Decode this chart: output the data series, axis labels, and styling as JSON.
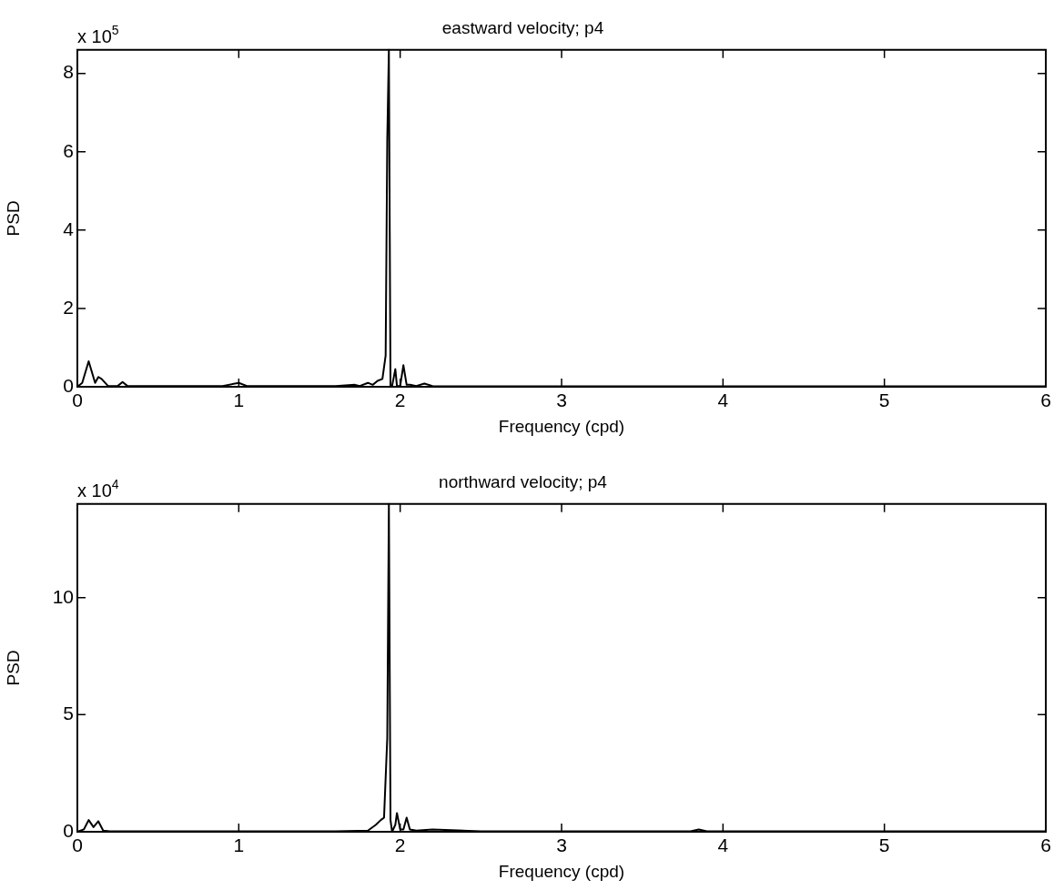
{
  "chart_data": [
    {
      "type": "line",
      "title": "eastward velocity; p4",
      "xlabel": "Frequency (cpd)",
      "ylabel": "PSD",
      "annotations": [
        "x 10$^{5}$"
      ],
      "series": [
        {
          "color": "#000000",
          "x": [
            0,
            0.03,
            0.07,
            0.11,
            0.13,
            0.15,
            0.19,
            0.25,
            0.28,
            0.31,
            0.4,
            0.6,
            0.9,
            1.0,
            1.05,
            1.3,
            1.6,
            1.72,
            1.75,
            1.8,
            1.83,
            1.86,
            1.89,
            1.91,
            1.92,
            1.93,
            1.94,
            1.95,
            1.97,
            1.98,
            2.0,
            2.02,
            2.04,
            2.06,
            2.1,
            2.15,
            2.2,
            2.5,
            3.0,
            3.5,
            4.0,
            5.0,
            6.0
          ],
          "values": [
            0,
            0.1,
            0.65,
            0.1,
            0.25,
            0.2,
            0.02,
            0.02,
            0.12,
            0.02,
            0.02,
            0.02,
            0.02,
            0.1,
            0.02,
            0.02,
            0.02,
            0.05,
            0.02,
            0.1,
            0.05,
            0.15,
            0.2,
            0.8,
            6.3,
            8.6,
            0,
            0.02,
            0.45,
            0.02,
            0.02,
            0.55,
            0.05,
            0.05,
            0.02,
            0.08,
            0.02,
            0.01,
            0.01,
            0.01,
            0.01,
            0.01,
            0.01
          ]
        }
      ],
      "xlim": [
        0,
        6
      ],
      "xticks": [
        0,
        1,
        2,
        3,
        4,
        5,
        6
      ],
      "ylim": [
        0,
        8.6
      ],
      "yticks": [
        0,
        2,
        4,
        6,
        8
      ],
      "grid": false,
      "legend": false,
      "marker": "none",
      "line_style": "solid"
    },
    {
      "type": "line",
      "title": "northward velocity; p4",
      "xlabel": "Frequency (cpd)",
      "ylabel": "PSD",
      "annotations": [
        "x 10$^{4}$"
      ],
      "series": [
        {
          "color": "#000000",
          "x": [
            0,
            0.04,
            0.07,
            0.1,
            0.13,
            0.16,
            0.2,
            0.4,
            0.8,
            1.2,
            1.6,
            1.8,
            1.85,
            1.88,
            1.9,
            1.92,
            1.93,
            1.94,
            1.95,
            1.97,
            1.98,
            2.0,
            2.02,
            2.04,
            2.06,
            2.1,
            2.2,
            2.5,
            3.0,
            3.5,
            3.8,
            3.85,
            3.9,
            4.5,
            5.0,
            6.0
          ],
          "values": [
            0,
            0.1,
            0.5,
            0.2,
            0.45,
            0.05,
            0.02,
            0.02,
            0.02,
            0.02,
            0.02,
            0.05,
            0.3,
            0.5,
            0.6,
            4.0,
            14,
            0.5,
            0,
            0.3,
            0.8,
            0.1,
            0.1,
            0.6,
            0.1,
            0.05,
            0.1,
            0.02,
            0.02,
            0.02,
            0.02,
            0.1,
            0.02,
            0.02,
            0.02,
            0.02
          ]
        }
      ],
      "xlim": [
        0,
        6
      ],
      "xticks": [
        0,
        1,
        2,
        3,
        4,
        5,
        6
      ],
      "ylim": [
        0,
        14
      ],
      "yticks": [
        0,
        5,
        10
      ],
      "grid": false,
      "legend": false,
      "marker": "none",
      "line_style": "solid"
    }
  ]
}
